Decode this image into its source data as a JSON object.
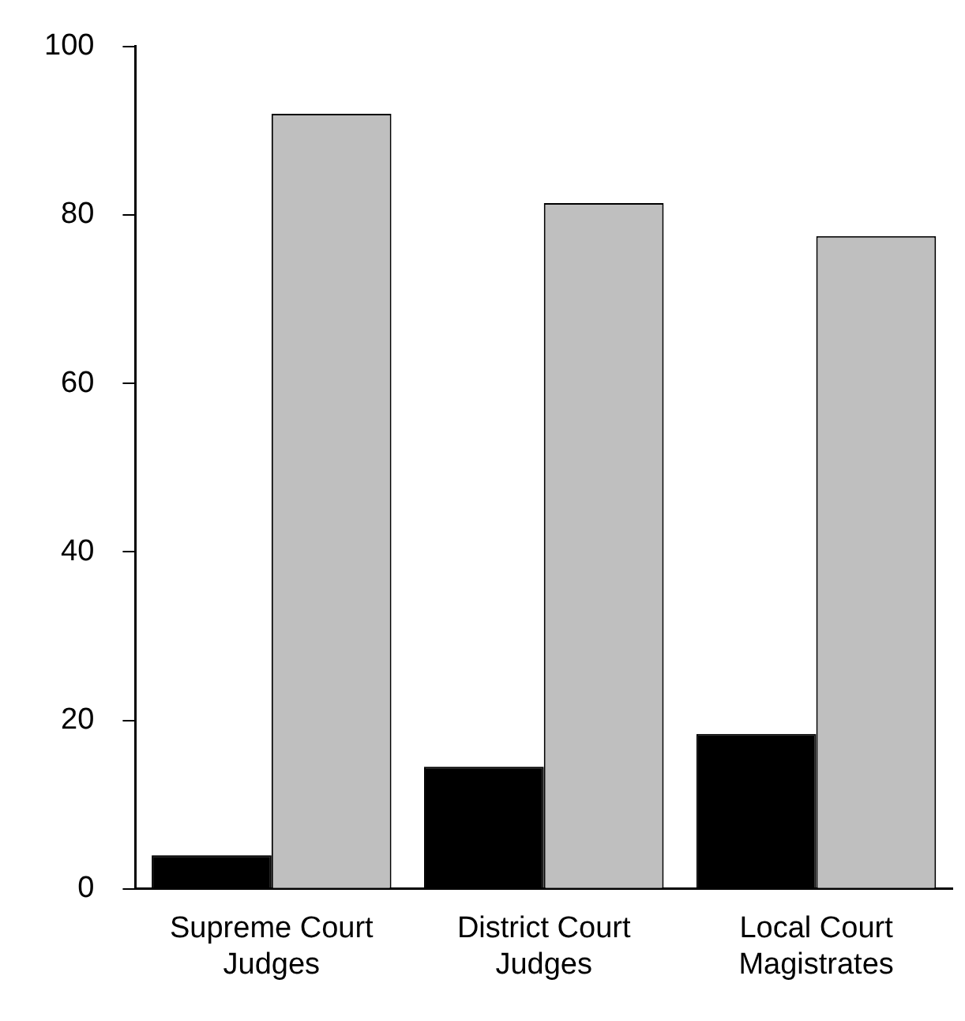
{
  "chart_data": {
    "type": "bar",
    "categories": [
      "Supreme Court Judges",
      "District Court Judges",
      "Local Court Magistrates"
    ],
    "series": [
      {
        "color": "#000000",
        "values": [
          4,
          14.5,
          18.4
        ]
      },
      {
        "color": "#bfbfbf",
        "values": [
          92,
          81.4,
          77.5
        ]
      }
    ],
    "ylim": [
      0,
      100
    ],
    "yticks": [
      0,
      20,
      40,
      60,
      80,
      100
    ],
    "grid": false,
    "legend": false
  }
}
